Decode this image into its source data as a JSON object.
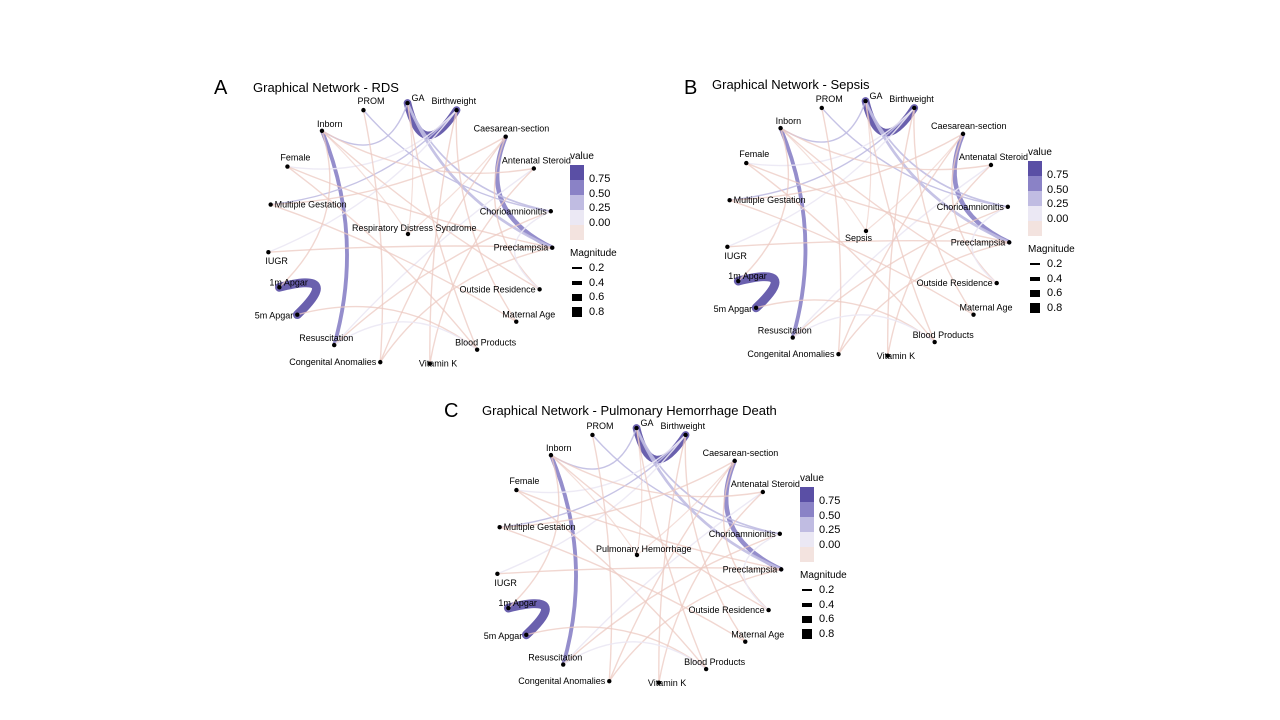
{
  "panels": [
    {
      "letter": "A",
      "title": "Graphical Network - RDS",
      "center_label": "Respiratory Distress Syndrome"
    },
    {
      "letter": "B",
      "title": "Graphical Network - Sepsis",
      "center_label": "Sepsis"
    },
    {
      "letter": "C",
      "title": "Graphical Network - Pulmonary Hemorrhage Death",
      "center_label": "Pulmonary Hemorrhage"
    }
  ],
  "nodes": [
    "GA",
    "Birthweight",
    "Caesarean-section",
    "Antenatal Steroid",
    "Chorioamnionitis",
    "Preeclampsia",
    "Outside Residence",
    "Maternal Age",
    "Blood Products",
    "Vitamin K",
    "Congenital Anomalies",
    "Resuscitation",
    "5m Apgar",
    "1m Apgar",
    "IUGR",
    "Multiple Gestation",
    "Female",
    "Inborn",
    "PROM"
  ],
  "edges": [
    {
      "a": "GA",
      "b": "Birthweight",
      "value": 0.7
    },
    {
      "a": "1m Apgar",
      "b": "5m Apgar",
      "value": 0.8
    },
    {
      "a": "Caesarean-section",
      "b": "Preeclampsia",
      "value": 0.4
    },
    {
      "a": "Inborn",
      "b": "Resuscitation",
      "value": 0.35
    },
    {
      "a": "GA",
      "b": "Preeclampsia",
      "value": 0.25
    },
    {
      "a": "GA",
      "b": "Chorioamnionitis",
      "value": 0.15
    },
    {
      "a": "GA",
      "b": "Inborn",
      "value": 0.12
    },
    {
      "a": "Birthweight",
      "b": "Multiple Gestation",
      "value": 0.12
    },
    {
      "a": "Antenatal Steroid",
      "b": "Resuscitation",
      "value": 0.1
    },
    {
      "a": "PROM",
      "b": "Chorioamnionitis",
      "value": 0.12
    },
    {
      "a": "Female",
      "b": "Birthweight",
      "value": 0.08
    },
    {
      "a": "IUGR",
      "b": "Birthweight",
      "value": 0.1
    },
    {
      "a": "Outside Residence",
      "b": "Inborn",
      "value": -0.12
    },
    {
      "a": "Inborn",
      "b": "Antenatal Steroid",
      "value": -0.1
    },
    {
      "a": "GA",
      "b": "Blood Products",
      "value": -0.1
    },
    {
      "a": "Birthweight",
      "b": "Vitamin K",
      "value": -0.08
    },
    {
      "a": "PROM",
      "b": "Congenital Anomalies",
      "value": -0.08
    },
    {
      "a": "Female",
      "b": "Preeclampsia",
      "value": -0.07
    },
    {
      "a": "Multiple Gestation",
      "b": "Caesarean-section",
      "value": -0.08
    },
    {
      "a": "Maternal Age",
      "b": "Multiple Gestation",
      "value": -0.07
    },
    {
      "a": "IUGR",
      "b": "Preeclampsia",
      "value": -0.08
    },
    {
      "a": "5m Apgar",
      "b": "Blood Products",
      "value": -0.07
    },
    {
      "a": "Resuscitation",
      "b": "Chorioamnionitis",
      "value": -0.07
    },
    {
      "a": "Congenital Anomalies",
      "b": "Caesarean-section",
      "value": -0.07
    },
    {
      "a": "Vitamin K",
      "b": "Antenatal Steroid",
      "value": -0.07
    },
    {
      "a": "Outside Residence",
      "b": "Caesarean-section",
      "value": -0.07
    },
    {
      "a": "Maternal Age",
      "b": "Birthweight",
      "value": -0.06
    },
    {
      "a": "Female",
      "b": "Blood Products",
      "value": -0.06
    },
    {
      "a": "1m Apgar",
      "b": "Inborn",
      "value": -0.06
    },
    {
      "a": "Preeclampsia",
      "b": "Congenital Anomalies",
      "value": -0.06
    },
    {
      "a": "Resuscitation",
      "b": "Blood Products",
      "value": 0.06
    },
    {
      "a": "Chorioamnionitis",
      "b": "Outside Residence",
      "value": 0.06
    }
  ],
  "legend": {
    "value_title": "value",
    "value_ticks": [
      "0.75",
      "0.50",
      "0.25",
      "0.00"
    ],
    "magnitude_title": "Magnitude",
    "magnitude_ticks": [
      "0.2",
      "0.4",
      "0.6",
      "0.8"
    ]
  },
  "colors": {
    "positive_strong": "#5a4fa5",
    "positive_mid": "#8a82c6",
    "positive_weak": "#c0bce2",
    "neutral": "#ebe8f4",
    "negative": "#f3e3df",
    "negative_edge": "#ecc9c2",
    "point": "#000000"
  }
}
